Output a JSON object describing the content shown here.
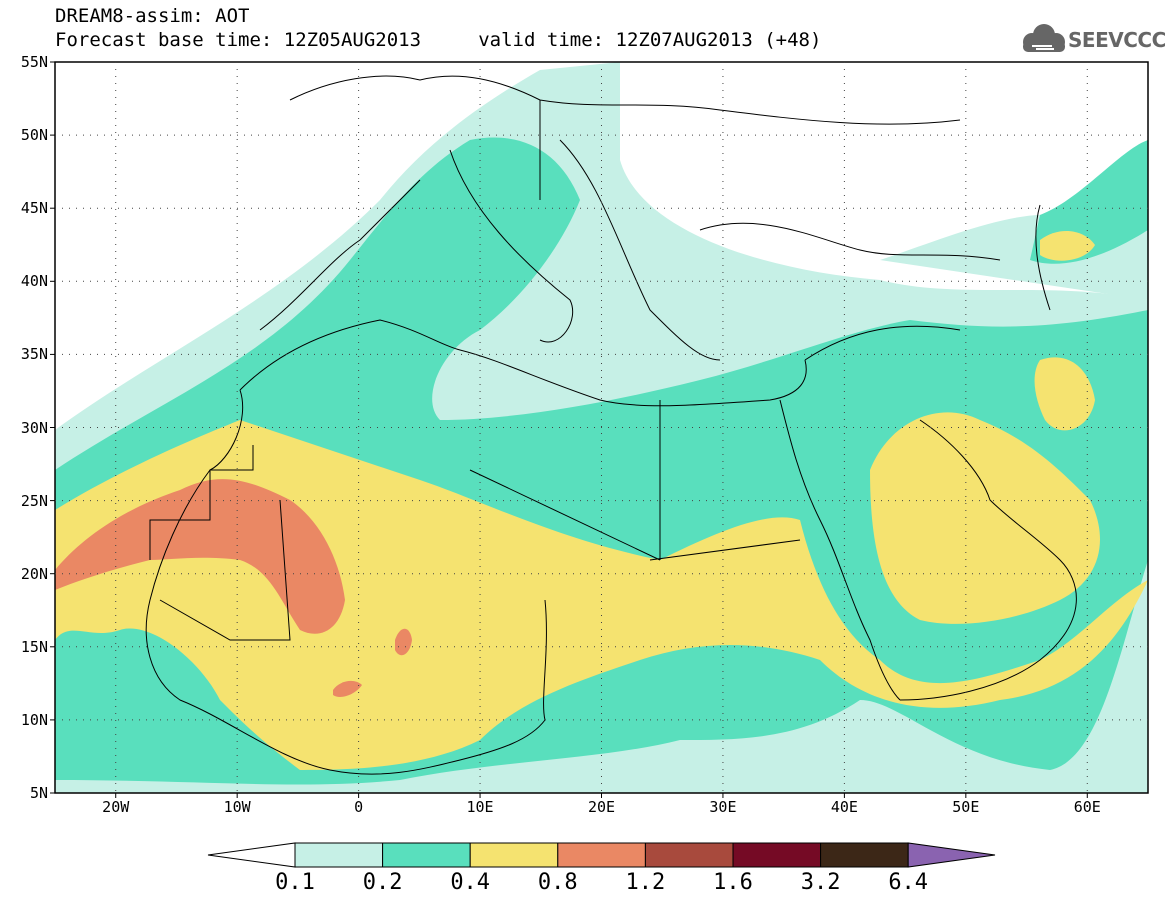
{
  "header": {
    "line1": "DREAM8-assim: AOT",
    "line2": "Forecast base time: 12Z05AUG2013     valid time: 12Z07AUG2013 (+48)"
  },
  "logo": {
    "text": "SEEVCCC",
    "icon": "cloud-icon"
  },
  "map": {
    "lat_labels": [
      "55N",
      "50N",
      "45N",
      "40N",
      "35N",
      "30N",
      "25N",
      "20N",
      "15N",
      "10N",
      "5N"
    ],
    "lon_labels": [
      "20W",
      "10W",
      "0",
      "10E",
      "20E",
      "30E",
      "40E",
      "50E",
      "60E"
    ],
    "lat_range": [
      5,
      55
    ],
    "lon_range": [
      -25,
      65
    ]
  },
  "colorbar": {
    "labels": [
      "0.1",
      "0.2",
      "0.4",
      "0.8",
      "1.2",
      "1.6",
      "3.2",
      "6.4"
    ],
    "colors": [
      "#c6f0e6",
      "#59dfbd",
      "#f5e370",
      "#ea8864",
      "#a84a3d",
      "#750a25",
      "#3c2717",
      "#8a63b0"
    ]
  },
  "colors": {
    "background": "#ffffff",
    "aot_0_1": "#c6f0e6",
    "aot_0_2": "#59dfbd",
    "aot_0_4": "#f5e370",
    "aot_0_8": "#ea8864"
  }
}
